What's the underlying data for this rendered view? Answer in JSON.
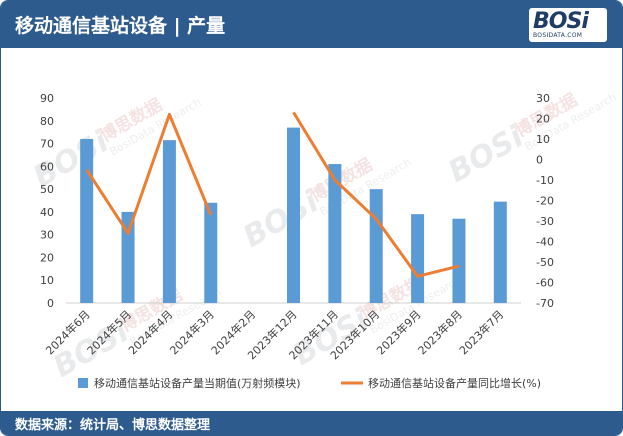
{
  "header": {
    "title": "移动通信基站设备 | 产量"
  },
  "logo": {
    "wordmark": "BOSi",
    "subtext": "BOSIDATA.COM"
  },
  "watermark": {
    "cn": "博思数据",
    "en": "BosiData Research",
    "mark": "BOSi"
  },
  "footer": {
    "source": "数据来源：统计局、博思数据整理"
  },
  "colors": {
    "bar": "#5b9bd5",
    "line": "#ed7d31",
    "header": "#2e5b8e"
  },
  "chart_data": {
    "type": "bar",
    "categories": [
      "2024年6月",
      "2024年5月",
      "2024年4月",
      "2024年3月",
      "2024年2月",
      "2023年12月",
      "2023年11月",
      "2023年10月",
      "2023年9月",
      "2023年8月",
      "2023年7月"
    ],
    "series": [
      {
        "name": "移动通信基站设备产量当期值(万射频模块)",
        "type": "bar",
        "axis": "left",
        "values": [
          72,
          40,
          71.5,
          44,
          null,
          77,
          61,
          50,
          39,
          37,
          44.5
        ]
      },
      {
        "name": "移动通信基站设备产量同比增长(%)",
        "type": "line",
        "axis": "right",
        "values": [
          -5,
          -36,
          22,
          -27,
          null,
          23,
          -10,
          -29,
          -57,
          -52,
          null
        ]
      }
    ],
    "yleft": {
      "min": 0,
      "max": 90,
      "step": 10,
      "ticks": [
        "0",
        "10",
        "20",
        "30",
        "40",
        "50",
        "60",
        "70",
        "80",
        "90"
      ]
    },
    "yright": {
      "min": -70,
      "max": 30,
      "step": 10,
      "ticks": [
        "-70",
        "-60",
        "-50",
        "-40",
        "-30",
        "-20",
        "-10",
        "0",
        "10",
        "20",
        "30"
      ]
    },
    "legend_position": "bottom",
    "grid": false
  }
}
